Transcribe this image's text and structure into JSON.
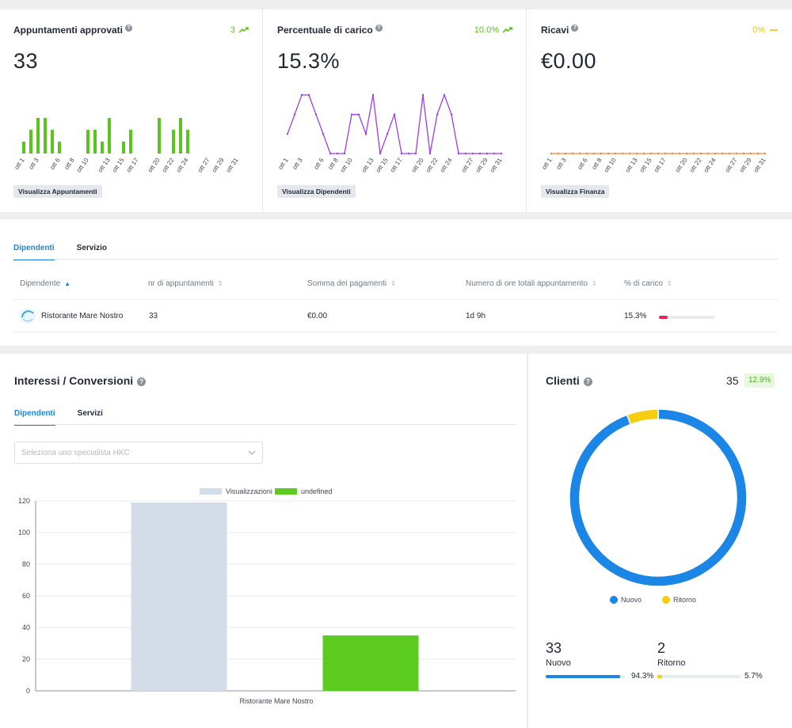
{
  "kpis": [
    {
      "title": "Appuntamenti approvati",
      "value": "33",
      "trend": "3",
      "trend_color": "#5ac51f",
      "trend_icon": "trending-up-icon",
      "button": "Visualizza Appuntamenti",
      "chart_data": {
        "type": "bar",
        "color": "#5ac51f",
        "categories": [
          "ott 1",
          "ott 2",
          "ott 3",
          "ott 4",
          "ott 5",
          "ott 6",
          "ott 7",
          "ott 8",
          "ott 9",
          "ott 10",
          "ott 11",
          "ott 12",
          "ott 13",
          "ott 14",
          "ott 15",
          "ott 16",
          "ott 17",
          "ott 18",
          "ott 19",
          "ott 20",
          "ott 21",
          "ott 22",
          "ott 23",
          "ott 24",
          "ott 25",
          "ott 26",
          "ott 27",
          "ott 28",
          "ott 29",
          "ott 30",
          "ott 31"
        ],
        "tick_labels": [
          "ott 1",
          "ott 3",
          "ott 6",
          "ott 8",
          "ott 10",
          "ott 13",
          "ott 15",
          "ott 17",
          "ott 20",
          "ott 22",
          "ott 24",
          "ott 27",
          "ott 29",
          "ott 31"
        ],
        "values": [
          1,
          2,
          3,
          3,
          2,
          1,
          0,
          0,
          0,
          2,
          2,
          1,
          3,
          0,
          1,
          2,
          0,
          0,
          0,
          3,
          0,
          2,
          3,
          2,
          0,
          0,
          0,
          0,
          0,
          0,
          0
        ],
        "ylim": [
          0,
          3
        ]
      }
    },
    {
      "title": "Percentuale di carico",
      "value": "15.3%",
      "trend": "10.0%",
      "trend_color": "#5ac51f",
      "trend_icon": "trending-up-icon",
      "button": "Visualizza Dipendenti",
      "chart_data": {
        "type": "line",
        "color": "#9b3df0",
        "categories": [
          "ott 1",
          "ott 2",
          "ott 3",
          "ott 4",
          "ott 5",
          "ott 6",
          "ott 7",
          "ott 8",
          "ott 9",
          "ott 10",
          "ott 11",
          "ott 12",
          "ott 13",
          "ott 14",
          "ott 15",
          "ott 16",
          "ott 17",
          "ott 18",
          "ott 19",
          "ott 20",
          "ott 21",
          "ott 22",
          "ott 23",
          "ott 24",
          "ott 25",
          "ott 26",
          "ott 27",
          "ott 28",
          "ott 29",
          "ott 30",
          "ott 31"
        ],
        "tick_labels": [
          "ott 1",
          "ott 3",
          "ott 6",
          "ott 8",
          "ott 10",
          "ott 13",
          "ott 15",
          "ott 17",
          "ott 20",
          "ott 22",
          "ott 24",
          "ott 27",
          "ott 29",
          "ott 31"
        ],
        "values": [
          1,
          2,
          3,
          3,
          2,
          1,
          0,
          0,
          0,
          2,
          2,
          1,
          3,
          0,
          1,
          2,
          0,
          0,
          0,
          3,
          0,
          2,
          3,
          2,
          0,
          0,
          0,
          0,
          0,
          0,
          0
        ],
        "ylim": [
          0,
          3
        ]
      }
    },
    {
      "title": "Ricavi",
      "value": "€0.00",
      "trend": "0%",
      "trend_color": "#f5c400",
      "trend_icon": "flat-dash-icon",
      "button": "Visualizza Finanza",
      "chart_data": {
        "type": "line",
        "color": "#f0843c",
        "categories": [
          "ott 1",
          "ott 2",
          "ott 3",
          "ott 4",
          "ott 5",
          "ott 6",
          "ott 7",
          "ott 8",
          "ott 9",
          "ott 10",
          "ott 11",
          "ott 12",
          "ott 13",
          "ott 14",
          "ott 15",
          "ott 16",
          "ott 17",
          "ott 18",
          "ott 19",
          "ott 20",
          "ott 21",
          "ott 22",
          "ott 23",
          "ott 24",
          "ott 25",
          "ott 26",
          "ott 27",
          "ott 28",
          "ott 29",
          "ott 30",
          "ott 31"
        ],
        "tick_labels": [
          "ott 1",
          "ott 3",
          "ott 6",
          "ott 8",
          "ott 10",
          "ott 13",
          "ott 15",
          "ott 17",
          "ott 20",
          "ott 22",
          "ott 24",
          "ott 27",
          "ott 29",
          "ott 31"
        ],
        "values": [
          0,
          0,
          0,
          0,
          0,
          0,
          0,
          0,
          0,
          0,
          0,
          0,
          0,
          0,
          0,
          0,
          0,
          0,
          0,
          0,
          0,
          0,
          0,
          0,
          0,
          0,
          0,
          0,
          0,
          0,
          0
        ],
        "ylim": [
          0,
          3
        ]
      }
    }
  ],
  "employees": {
    "tabs": [
      "Dipendenti",
      "Servizio"
    ],
    "columns": [
      "Dipendente",
      "nr di appuntamenti",
      "Somma dei pagamenti",
      "Numero di ore totali appuntamento",
      "% di carico"
    ],
    "rows": [
      {
        "name": "Ristorante Mare Nostro",
        "appointments": "33",
        "payments": "€0.00",
        "hours": "1d 9h",
        "load": "15.3%",
        "load_fraction": 0.153
      }
    ],
    "load_color": "#e0245e"
  },
  "interests": {
    "title": "Interessi / Conversioni",
    "tabs": [
      "Dipendenti",
      "Servizi"
    ],
    "select_placeholder": "Seleziona uno specialista HKC",
    "chart_data": {
      "type": "bar",
      "categories": [
        "Ristorante Mare Nostro"
      ],
      "series": [
        {
          "name": "Visualizzazioni",
          "values": [
            119
          ],
          "color": "#d3dde9"
        },
        {
          "name": "undefined",
          "values": [
            35
          ],
          "color": "#5ccb1f"
        }
      ],
      "yticks": [
        "0",
        "20",
        "40",
        "60",
        "80",
        "100",
        "120"
      ],
      "ylim": [
        0,
        120
      ],
      "legend": "top"
    }
  },
  "clients": {
    "title": "Clienti",
    "total": "35",
    "badge": "12.9%",
    "chart_data": {
      "type": "pie",
      "labels": [
        "Nuovo",
        "Ritorno"
      ],
      "values": [
        33,
        2
      ],
      "colors": [
        "#1b86e6",
        "#f7cd0f"
      ]
    },
    "stats": [
      {
        "value": "33",
        "label": "Nuovo",
        "percent": "94.3%",
        "fraction": 0.943,
        "color": "#1b86e6"
      },
      {
        "value": "2",
        "label": "Ritorno",
        "percent": "5.7%",
        "fraction": 0.057,
        "color": "#f7cd0f"
      }
    ]
  }
}
